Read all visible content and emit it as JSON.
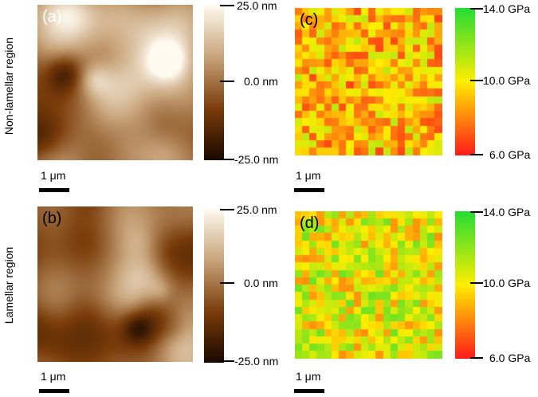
{
  "row_labels": {
    "top": "Non-lamellar region",
    "bottom": "Lamellar region"
  },
  "panels": {
    "a": {
      "letter": "(a)",
      "type": "topography"
    },
    "b": {
      "letter": "(b)",
      "type": "topography"
    },
    "c": {
      "letter": "(c)",
      "type": "modulus-map"
    },
    "d": {
      "letter": "(d)",
      "type": "modulus-map"
    }
  },
  "height_colorbar": {
    "max_label": "25.0 nm",
    "mid_label": "0.0 nm",
    "min_label": "-25.0 nm",
    "colors": [
      "#fffaf0",
      "#c8a47a",
      "#7a3c0a",
      "#1a0800"
    ]
  },
  "modulus_colorbar": {
    "max_label": "14.0 GPa",
    "mid_label": "10.0 GPa",
    "min_label": "6.0 GPa",
    "colors": [
      "#22dd33",
      "#ffee00",
      "#ff1a1a"
    ]
  },
  "scale_bars": {
    "a": "1 μm",
    "b": "1 μm",
    "c": "1 μm",
    "d": "1 μm"
  },
  "grid_size": 20
}
